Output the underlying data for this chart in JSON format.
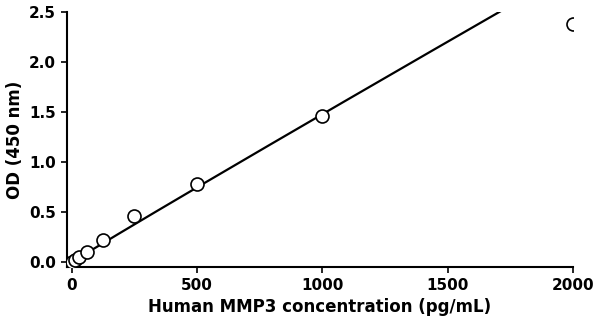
{
  "x_points": [
    0,
    15.6,
    31.25,
    62.5,
    125,
    250,
    500,
    1000,
    2000
  ],
  "y_points": [
    0.0,
    0.02,
    0.05,
    0.1,
    0.22,
    0.46,
    0.78,
    1.46,
    2.38
  ],
  "xlabel": "Human MMP3 concentration (pg/mL)",
  "ylabel": "OD (450 nm)",
  "xlim": [
    -20,
    2000
  ],
  "ylim": [
    -0.05,
    2.5
  ],
  "xticks": [
    0,
    500,
    1000,
    1500,
    2000
  ],
  "yticks": [
    0,
    0.5,
    1.0,
    1.5,
    2.0,
    2.5
  ],
  "line_color": "#000000",
  "marker_color": "#ffffff",
  "marker_edge_color": "#000000",
  "marker_size": 5,
  "line_width": 1.6,
  "xlabel_fontsize": 12,
  "ylabel_fontsize": 12,
  "tick_fontsize": 11,
  "background_color": "#ffffff"
}
